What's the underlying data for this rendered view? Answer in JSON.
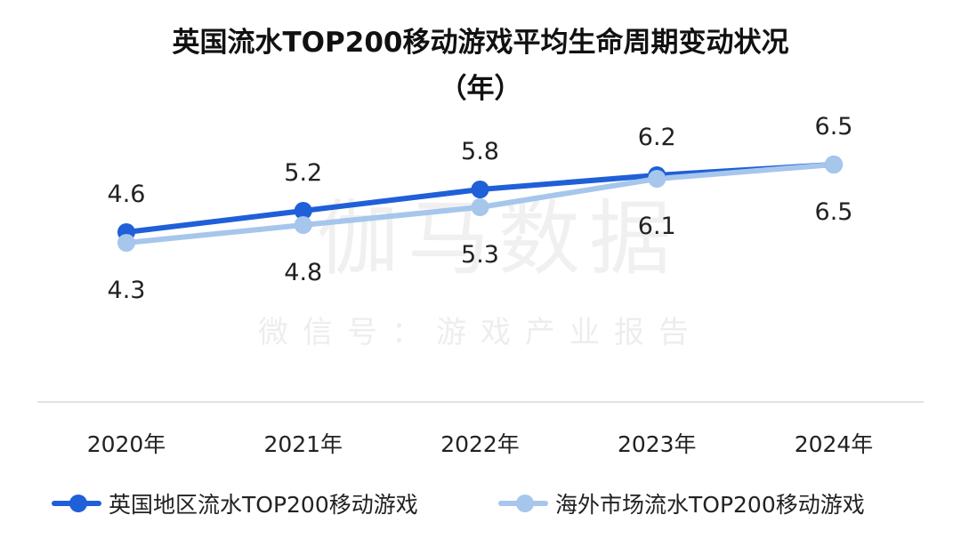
{
  "chart_data": {
    "type": "line",
    "title": "英国流水TOP200移动游戏平均生命周期变动状况",
    "subtitle": "（年）",
    "categories": [
      "2020年",
      "2021年",
      "2022年",
      "2023年",
      "2024年"
    ],
    "series": [
      {
        "name": "英国地区流水TOP200移动游戏",
        "values": [
          4.6,
          5.2,
          5.8,
          6.2,
          6.5
        ],
        "color": "#1f5fd8",
        "labels_position": "above"
      },
      {
        "name": "海外市场流水TOP200移动游戏",
        "values": [
          4.3,
          4.8,
          5.3,
          6.1,
          6.5
        ],
        "color": "#a6c6ec",
        "labels_position": "below"
      }
    ],
    "ylim": [
      0,
      7.5
    ],
    "grid": false,
    "legend_position": "bottom",
    "data_labels": true
  },
  "watermark": {
    "main": "伽马数据",
    "sub": "微信号：游戏产业报告"
  }
}
